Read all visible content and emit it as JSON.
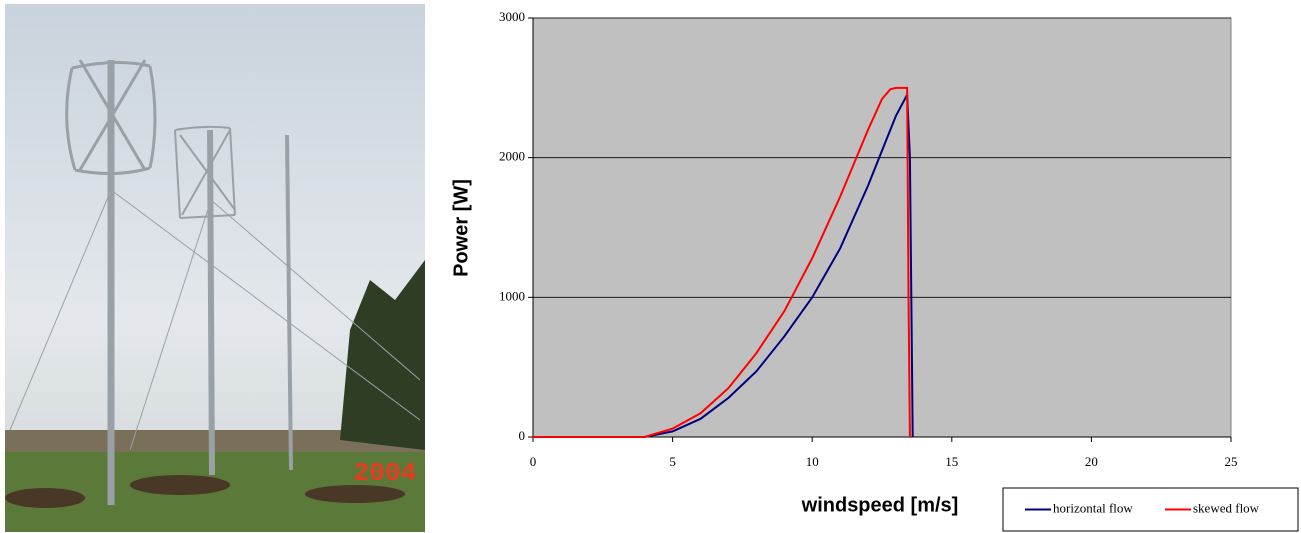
{
  "photo": {
    "caption": "2004"
  },
  "chart_data": {
    "type": "line",
    "x_label": "windspeed [m/s]",
    "y_label": "Power [W]",
    "xlim": [
      0,
      25
    ],
    "ylim": [
      0,
      3000
    ],
    "xticks": [
      0,
      5,
      10,
      15,
      20,
      25
    ],
    "yticks": [
      0,
      1000,
      2000,
      3000
    ],
    "grid": true,
    "legend": "bottom-right",
    "series": [
      {
        "name": "horizontal flow",
        "color": "#000080",
        "x": [
          0,
          4,
          5,
          6,
          7,
          8,
          9,
          10,
          11,
          12,
          12.5,
          13,
          13.4,
          13.5,
          13.55,
          13.6
        ],
        "values": [
          0,
          0,
          40,
          130,
          280,
          470,
          720,
          1000,
          1350,
          1800,
          2050,
          2300,
          2450,
          2000,
          1000,
          0
        ]
      },
      {
        "name": "skewed flow",
        "color": "#ff0000",
        "x": [
          0,
          4,
          5,
          6,
          7,
          8,
          9,
          10,
          11,
          12,
          12.5,
          12.8,
          13,
          13.4,
          13.45,
          13.5
        ],
        "values": [
          0,
          0,
          60,
          170,
          350,
          600,
          900,
          1280,
          1720,
          2200,
          2420,
          2490,
          2500,
          2500,
          1000,
          0
        ]
      }
    ]
  }
}
